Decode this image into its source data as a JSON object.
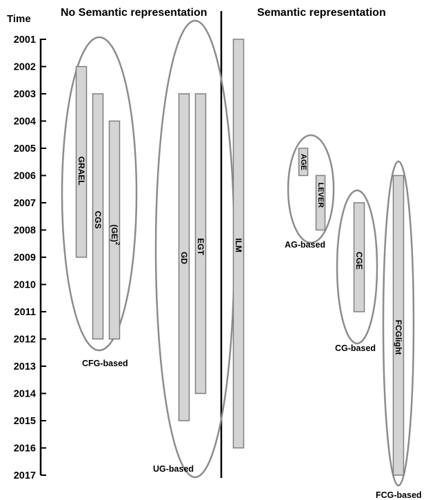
{
  "time_label": "Time",
  "headers": {
    "left": "No Semantic representation",
    "right": "Semantic representation"
  },
  "years": [
    "2001",
    "2002",
    "2003",
    "2004",
    "2005",
    "2006",
    "2007",
    "2008",
    "2009",
    "2010",
    "2011",
    "2012",
    "2013",
    "2014",
    "2015",
    "2016",
    "2017"
  ],
  "methods": [
    {
      "name": "GRAEL",
      "start": 2002,
      "end": 2009
    },
    {
      "name": "CGS",
      "start": 2003,
      "end": 2012
    },
    {
      "name": "(GE)",
      "sup": "2",
      "start": 2004,
      "end": 2012
    },
    {
      "name": "GD",
      "start": 2003,
      "end": 2015
    },
    {
      "name": "EGT",
      "start": 2003,
      "end": 2014
    },
    {
      "name": "ILM",
      "start": 2001,
      "end": 2016
    },
    {
      "name": "AGE",
      "start": 2005,
      "end": 2006
    },
    {
      "name": "LEVER",
      "start": 2006,
      "end": 2008
    },
    {
      "name": "CGE",
      "start": 2007,
      "end": 2011
    },
    {
      "name": "FCGlight",
      "start": 2006,
      "end": 2017
    }
  ],
  "groups": [
    {
      "label": "CFG-based",
      "members": [
        "GRAEL",
        "CGS",
        "(GE)"
      ]
    },
    {
      "label": "UG-based",
      "members": [
        "GD",
        "EGT",
        "ILM"
      ]
    },
    {
      "label": "AG-based",
      "members": [
        "AGE",
        "LEVER"
      ]
    },
    {
      "label": "CG-based",
      "members": [
        "CGE"
      ]
    },
    {
      "label": "FCG-based",
      "members": [
        "FCGlight"
      ]
    }
  ]
}
